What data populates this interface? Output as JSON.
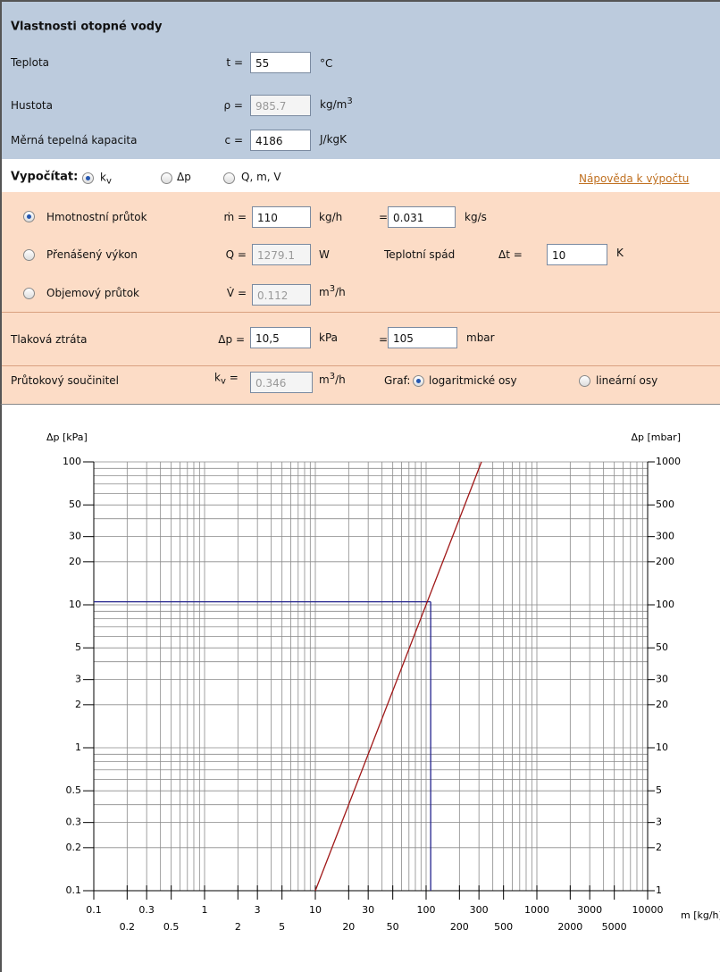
{
  "water": {
    "title": "Vlastnosti otopné vody",
    "rows": [
      {
        "label": "Teplota",
        "symbol": "t =",
        "value": "55",
        "unit": "°C",
        "unit_sup": ""
      },
      {
        "label": "Hustota",
        "symbol": "ρ =",
        "value": "985.7",
        "unit": "kg/m",
        "unit_sup": "3"
      },
      {
        "label": "Měrná tepelná kapacita",
        "symbol": "c =",
        "value": "4186",
        "unit": "J/kgK",
        "unit_sup": ""
      }
    ]
  },
  "calc": {
    "label": "Vypočítat:",
    "kv": "k",
    "kv_sub": "v",
    "dp": "Δp",
    "qmv": "Q, m, V",
    "help": "Nápověda k výpočtu"
  },
  "flow": {
    "mass": {
      "label": "Hmotnostní průtok",
      "symbol": "ṁ =",
      "value": "110",
      "unit": "kg/h",
      "eq": "=",
      "value2": "0.031",
      "unit2": "kg/s"
    },
    "power": {
      "label": "Přenášený výkon",
      "symbol": "Q =",
      "value": "1279.1",
      "unit": "W",
      "drop_label": "Teplotní spád",
      "drop_symbol": "Δt =",
      "drop_value": "10",
      "drop_unit": "K"
    },
    "volume": {
      "label": "Objemový průtok",
      "symbol": "V̇ =",
      "value": "0.112",
      "unit": "m",
      "unit_sup": "3",
      "unit_rest": "/h"
    }
  },
  "pressure": {
    "label": "Tlaková ztráta",
    "symbol": "Δp =",
    "value": "10,5",
    "unit": "kPa",
    "eq": "=",
    "value2": "105",
    "unit2": "mbar"
  },
  "kv": {
    "label": "Průtokový součinitel",
    "symbol": "k",
    "symbol_sub": "v",
    "symbol_eq": " =",
    "value": "0.346",
    "unit": "m",
    "unit_sup": "3",
    "unit_rest": "/h",
    "graph": "Graf:",
    "log": "logaritmické osy",
    "lin": "lineární osy"
  },
  "chart_data": {
    "type": "line",
    "ylabel": "Δp [kPa]",
    "y2label": "Δp [mbar]",
    "xlabel": "m [kg/h]",
    "log_x": true,
    "log_y": true,
    "xlim": [
      0.1,
      10000
    ],
    "ylim": [
      0.1,
      100
    ],
    "y2lim": [
      1,
      1000
    ],
    "xticks": [
      0.1,
      0.3,
      1,
      3,
      10,
      30,
      100,
      300,
      1000,
      3000,
      10000
    ],
    "xticks_lower": [
      0.2,
      0.5,
      2,
      5,
      20,
      50,
      200,
      500,
      2000,
      5000
    ],
    "yticks": [
      100,
      50,
      30,
      20,
      10,
      5,
      3,
      2,
      1,
      0.5,
      0.3,
      0.2,
      0.1
    ],
    "y2ticks": [
      1000,
      500,
      300,
      200,
      100,
      50,
      30,
      20,
      10,
      5,
      3,
      2,
      1
    ],
    "xgrid": [
      0.1,
      0.2,
      0.3,
      0.4,
      0.5,
      0.6,
      0.7,
      0.8,
      0.9,
      1,
      2,
      3,
      4,
      5,
      6,
      7,
      8,
      9,
      10,
      20,
      30,
      40,
      50,
      60,
      70,
      80,
      90,
      100,
      200,
      300,
      400,
      500,
      600,
      700,
      800,
      900,
      1000,
      2000,
      3000,
      4000,
      5000,
      6000,
      7000,
      8000,
      9000,
      10000
    ],
    "ygrid": [
      0.1,
      0.2,
      0.3,
      0.4,
      0.5,
      0.6,
      0.7,
      0.8,
      0.9,
      1,
      2,
      3,
      4,
      5,
      6,
      7,
      8,
      9,
      10,
      20,
      30,
      40,
      50,
      60,
      70,
      80,
      90,
      100
    ],
    "grid": true,
    "series": [
      {
        "color": "#a01818",
        "x": [
          10,
          316
        ],
        "values": [
          0.1,
          100
        ]
      }
    ],
    "marker": {
      "color": "#22228c",
      "x": 110,
      "y": 10.5
    }
  }
}
